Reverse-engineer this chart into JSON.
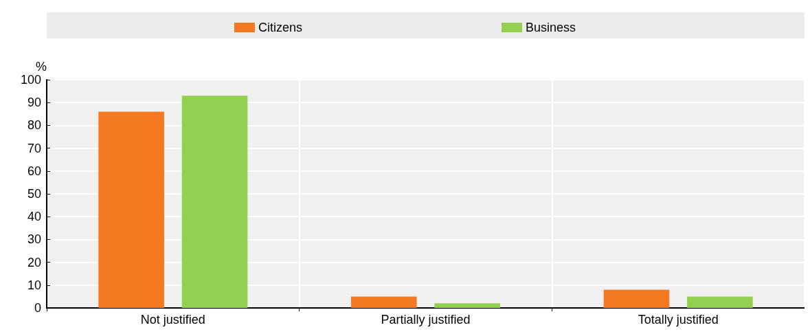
{
  "chart_data": {
    "type": "bar",
    "ylabel": "%",
    "categories": [
      "Not justified",
      "Partially justified",
      "Totally justified"
    ],
    "series": [
      {
        "name": "Citizens",
        "color": "#f47920",
        "values": [
          86,
          5,
          8
        ]
      },
      {
        "name": "Business",
        "color": "#92d050",
        "values": [
          93,
          2,
          5
        ]
      }
    ],
    "ylim": [
      0,
      100
    ],
    "yticks": [
      0,
      10,
      20,
      30,
      40,
      50,
      60,
      70,
      80,
      90,
      100
    ],
    "grid": true,
    "legend": "top"
  }
}
